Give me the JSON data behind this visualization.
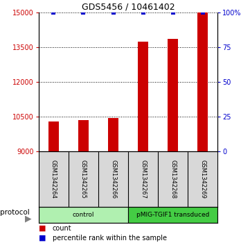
{
  "title": "GDS5456 / 10461402",
  "samples": [
    "GSM1342264",
    "GSM1342265",
    "GSM1342266",
    "GSM1342267",
    "GSM1342268",
    "GSM1342269"
  ],
  "counts": [
    10300,
    10360,
    10450,
    13750,
    13870,
    15000
  ],
  "percentile_ranks": [
    100,
    100,
    100,
    100,
    100,
    100
  ],
  "ylim_left": [
    9000,
    15000
  ],
  "ylim_right": [
    0,
    100
  ],
  "yticks_left": [
    9000,
    10500,
    12000,
    13500,
    15000
  ],
  "yticks_right": [
    0,
    25,
    50,
    75,
    100
  ],
  "ytick_labels_right": [
    "0",
    "25",
    "50",
    "75",
    "100%"
  ],
  "bar_color": "#cc0000",
  "dot_color": "#0000cc",
  "left_tick_color": "#cc0000",
  "right_tick_color": "#0000cc",
  "groups": [
    {
      "label": "control",
      "samples": [
        0,
        1,
        2
      ],
      "color": "#b0f0b0"
    },
    {
      "label": "pMIG-TGIF1 transduced",
      "samples": [
        3,
        4,
        5
      ],
      "color": "#44cc44"
    }
  ],
  "protocol_label": "protocol",
  "legend_count_label": "count",
  "legend_pct_label": "percentile rank within the sample",
  "bar_width": 0.35
}
